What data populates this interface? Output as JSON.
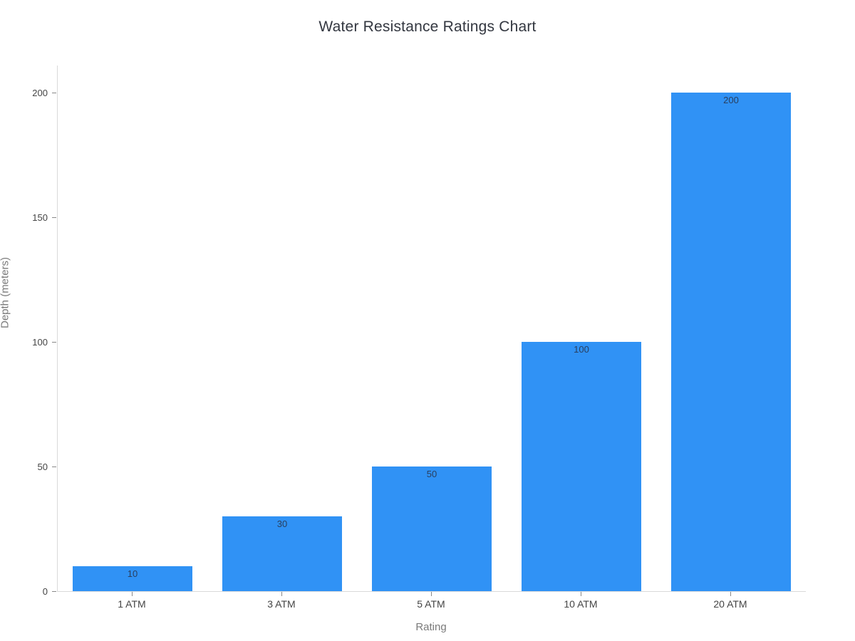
{
  "chart_data": {
    "type": "bar",
    "title": "Water Resistance Ratings Chart",
    "xlabel": "Rating",
    "ylabel": "Depth (meters)",
    "categories": [
      "1 ATM",
      "3 ATM",
      "5 ATM",
      "10 ATM",
      "20 ATM"
    ],
    "values": [
      10,
      30,
      50,
      100,
      200
    ],
    "bar_value_labels": [
      "10",
      "30",
      "50",
      "100",
      "200"
    ],
    "yticks": [
      0,
      50,
      100,
      150,
      200
    ],
    "ylim": [
      0,
      211
    ],
    "grid": "off",
    "legend": "none",
    "bar_label_position": "inside-top",
    "colors": {
      "bar": "#3092f5",
      "bar_label": "#2a3f5f",
      "tick_label": "#444444",
      "axis_title": "#7a7a7a",
      "axis_line": "#d9d9d9",
      "tick_mark": "#888888",
      "title": "#333740",
      "background": "#ffffff"
    }
  }
}
